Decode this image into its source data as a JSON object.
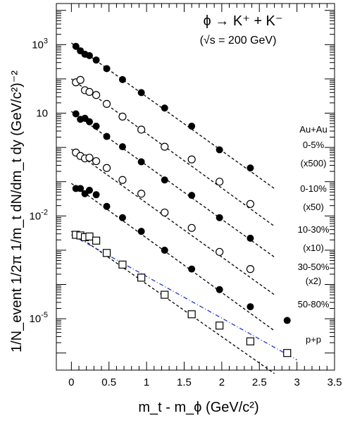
{
  "chart_data": {
    "type": "scatter",
    "title": "ϕ → K⁺ + K⁻",
    "subtitle": "(√s = 200 GeV)",
    "xlabel": "m_t - m_ϕ (GeV/c²)",
    "ylabel": "1/N_event 1/2π 1/m_t dN/dm_t dy (GeV/c²)⁻²",
    "x_ticks": [
      "0",
      "0.5",
      "1",
      "1.5",
      "2",
      "2.5",
      "3",
      "3.5"
    ],
    "y_ticks": [
      "10^3",
      "10",
      "10^-2",
      "10^-5"
    ],
    "xlim": [
      -0.2,
      3.5
    ],
    "ylim_log10": [
      -6.5,
      4.2
    ],
    "yscale": "log",
    "legend_header": "Au+Au",
    "series": [
      {
        "name": "0-5% (x500)",
        "marker": "filled-circle",
        "x": [
          0.06,
          0.12,
          0.18,
          0.24,
          0.33,
          0.47,
          0.68,
          0.93,
          1.24,
          1.6,
          1.97,
          2.38
        ],
        "log10_y": [
          2.95,
          2.82,
          2.72,
          2.68,
          2.55,
          2.3,
          1.98,
          1.6,
          1.15,
          0.62,
          -0.07,
          -0.6
        ],
        "fit_log10_y": [
          3.05,
          -1.2
        ],
        "fit_x": [
          0.0,
          2.7
        ]
      },
      {
        "name": "0-10% (x50)",
        "marker": "open-circle",
        "x": [
          0.06,
          0.12,
          0.18,
          0.24,
          0.33,
          0.47,
          0.68,
          0.93,
          1.24,
          1.6,
          1.97,
          2.38
        ],
        "log10_y": [
          1.9,
          1.97,
          1.67,
          1.62,
          1.53,
          1.27,
          0.9,
          0.52,
          0.02,
          -0.35,
          -1.0,
          -1.65
        ],
        "fit_log10_y": [
          2.0,
          -2.3
        ],
        "fit_x": [
          0.0,
          2.7
        ]
      },
      {
        "name": "10-30% (x10)",
        "marker": "filled-circle",
        "x": [
          0.06,
          0.12,
          0.18,
          0.24,
          0.33,
          0.47,
          0.68,
          0.93,
          1.24,
          1.6,
          1.97,
          2.38
        ],
        "log10_y": [
          0.98,
          0.82,
          0.85,
          0.75,
          0.62,
          0.32,
          0.02,
          -0.42,
          -0.95,
          -1.4,
          -2.05,
          -2.65
        ],
        "fit_log10_y": [
          1.05,
          -3.2
        ],
        "fit_x": [
          0.0,
          2.7
        ]
      },
      {
        "name": "30-50% (x2)",
        "marker": "open-circle",
        "x": [
          0.06,
          0.12,
          0.18,
          0.24,
          0.33,
          0.47,
          0.68,
          0.93,
          1.24,
          1.6,
          1.97,
          2.38
        ],
        "log10_y": [
          -0.15,
          -0.25,
          -0.32,
          -0.3,
          -0.4,
          -0.6,
          -0.95,
          -1.35,
          -1.9,
          -2.35,
          -3.05,
          -3.55
        ],
        "fit_log10_y": [
          -0.05,
          -4.3
        ],
        "fit_x": [
          0.0,
          2.7
        ]
      },
      {
        "name": "50-80%",
        "marker": "filled-circle",
        "x": [
          0.06,
          0.12,
          0.18,
          0.24,
          0.33,
          0.47,
          0.68,
          0.93,
          1.24,
          1.6,
          1.97,
          2.38,
          2.87
        ],
        "log10_y": [
          -1.2,
          -1.2,
          -1.35,
          -1.25,
          -1.38,
          -1.72,
          -2.05,
          -2.45,
          -3.0,
          -3.55,
          -4.15,
          -4.65,
          -5.05
        ],
        "fit_log10_y": [
          -1.05,
          -5.35
        ],
        "fit_x": [
          0.0,
          2.7
        ]
      },
      {
        "name": "p+p",
        "marker": "open-square",
        "x": [
          0.06,
          0.12,
          0.18,
          0.24,
          0.33,
          0.47,
          0.68,
          0.93,
          1.24,
          1.6,
          1.97,
          2.38,
          2.87
        ],
        "log10_y": [
          -2.55,
          -2.57,
          -2.62,
          -2.6,
          -2.72,
          -3.08,
          -3.42,
          -3.8,
          -4.3,
          -4.87,
          -5.2,
          -5.66,
          -6.0
        ],
        "fit_log10_y": [
          -2.45,
          -6.6
        ],
        "fit_x": [
          0.0,
          2.7
        ],
        "fit2_x": [
          0.0,
          3.0
        ],
        "fit2_log10_y": [
          -2.55,
          -6.2
        ]
      }
    ],
    "grid": false,
    "legend_placement": "right"
  },
  "legend": {
    "header": "Au+Au",
    "entries": [
      {
        "line1": "0-5%",
        "line2": "(x500)"
      },
      {
        "line1": "0-10%",
        "line2": "(x50)"
      },
      {
        "line1": "10-30%",
        "line2": "(x10)"
      },
      {
        "line1": "30-50%",
        "line2": "(x2)"
      },
      {
        "line1": "50-80%",
        "line2": ""
      },
      {
        "line1": "p+p",
        "line2": ""
      }
    ]
  },
  "colors": {
    "marker": "#000000",
    "fit_line": "#000000",
    "fit_line_pp_alt": "#2233cc",
    "axis": "#000000",
    "background": "#ffffff"
  }
}
